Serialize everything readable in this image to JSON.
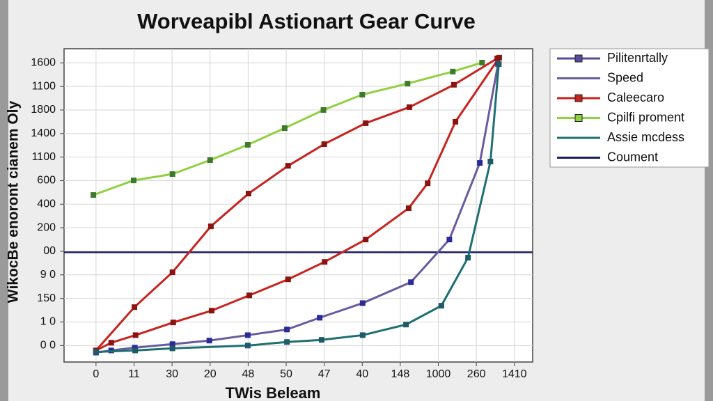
{
  "chart_data": {
    "type": "line",
    "title": "Worveapibl Astionart Gear Curve",
    "x_label": "TWis Beleam",
    "y_label": "WikocBe enoront cianem Oly",
    "xlim": [
      -0.84,
      11.48
    ],
    "ylim": [
      -0.7,
      12.6
    ],
    "xticks": [
      {
        "value": 0,
        "label": "0"
      },
      {
        "value": 1,
        "label": "11"
      },
      {
        "value": 2,
        "label": "30"
      },
      {
        "value": 3,
        "label": "20"
      },
      {
        "value": 4,
        "label": "48"
      },
      {
        "value": 5,
        "label": "50"
      },
      {
        "value": 6,
        "label": "47"
      },
      {
        "value": 7,
        "label": "40"
      },
      {
        "value": 8,
        "label": "148"
      },
      {
        "value": 9,
        "label": "1000"
      },
      {
        "value": 10,
        "label": "260"
      },
      {
        "value": 11,
        "label": "1410"
      }
    ],
    "yticks": [
      {
        "value": 0,
        "label": "0 0"
      },
      {
        "value": 1,
        "label": "1 0"
      },
      {
        "value": 2,
        "label": "150"
      },
      {
        "value": 3,
        "label": "9 0"
      },
      {
        "value": 4,
        "label": "00"
      },
      {
        "value": 5,
        "label": "200"
      },
      {
        "value": 6,
        "label": "400"
      },
      {
        "value": 7,
        "label": "600"
      },
      {
        "value": 8,
        "label": "1100"
      },
      {
        "value": 9,
        "label": "1400"
      },
      {
        "value": 10,
        "label": "1800"
      },
      {
        "value": 11,
        "label": "1100"
      },
      {
        "value": 12,
        "label": "1600"
      }
    ],
    "grid": true,
    "legend": [
      {
        "label": "Pilitenrtally",
        "color": "#5a4a9a",
        "marker": true
      },
      {
        "label": "Speed",
        "color": "#6a5a9e",
        "marker": false
      },
      {
        "label": "Caleecaro",
        "color": "#c8231e",
        "marker": true
      },
      {
        "label": "Cpilfi proment",
        "color": "#8fd13f",
        "marker": true
      },
      {
        "label": "Assie mcdess",
        "color": "#1d6f70",
        "marker": false
      },
      {
        "label": "Coument",
        "color": "#1c1f5e",
        "marker": false
      }
    ],
    "hline": {
      "value": 3.96,
      "color": "#1c1f5e"
    },
    "series": [
      {
        "color": "#8fd13f",
        "marker_color": "#3d7a2c",
        "x": [
          -0.07,
          0.99,
          2.01,
          3.0,
          3.99,
          4.96,
          5.98,
          7.0,
          8.19,
          9.38,
          10.15
        ],
        "values": [
          6.39,
          7.01,
          7.28,
          7.87,
          8.52,
          9.23,
          10.0,
          10.65,
          11.12,
          11.63,
          12.01
        ]
      },
      {
        "color": "#c8231e",
        "marker_color": "#8c1410",
        "x": [
          0,
          1.01,
          2.01,
          3.02,
          4.01,
          5.05,
          6.0,
          7.09,
          8.24,
          9.41,
          10.55
        ],
        "values": [
          -0.21,
          1.63,
          3.11,
          5.06,
          6.45,
          7.63,
          8.55,
          9.44,
          10.12,
          11.07,
          12.19
        ]
      },
      {
        "color": "#c8231e",
        "marker_color": "#8c1410",
        "x": [
          0,
          0.4,
          1.04,
          2.03,
          3.04,
          4.03,
          5.05,
          6.01,
          7.09,
          8.22,
          8.72,
          9.45,
          10.6
        ],
        "values": [
          -0.21,
          0.12,
          0.44,
          0.98,
          1.48,
          2.13,
          2.81,
          3.55,
          4.5,
          5.83,
          6.89,
          9.5,
          12.22
        ]
      },
      {
        "color": "#6a5a9e",
        "marker_color": "#2a2a9a",
        "x": [
          0,
          0.4,
          1.02,
          2.01,
          2.98,
          3.99,
          5.02,
          5.88,
          7.01,
          8.28,
          9.29,
          10.09,
          10.57
        ],
        "values": [
          -0.3,
          -0.21,
          -0.09,
          0.06,
          0.21,
          0.44,
          0.68,
          1.18,
          1.8,
          2.69,
          4.5,
          7.75,
          11.95
        ]
      },
      {
        "color": "#1d6f70",
        "marker_color": "#1d5a6a",
        "x": [
          0,
          1.03,
          2.01,
          3.99,
          5.02,
          5.93,
          7.01,
          8.15,
          9.08,
          9.78,
          10.37,
          10.59
        ],
        "values": [
          -0.27,
          -0.21,
          -0.12,
          0,
          0.15,
          0.24,
          0.44,
          0.89,
          1.69,
          3.73,
          7.81,
          11.95
        ]
      }
    ]
  }
}
